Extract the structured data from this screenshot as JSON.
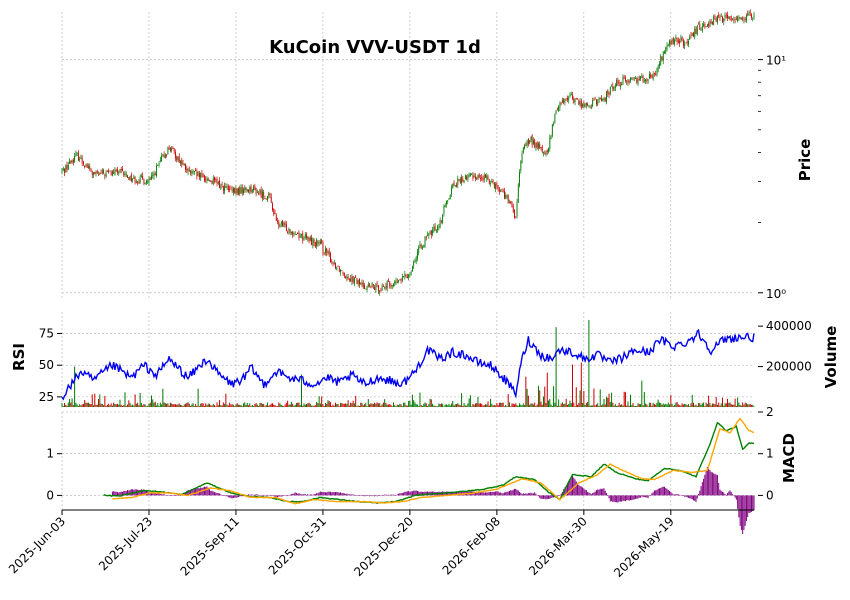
{
  "chart_data": {
    "type": "candlestick",
    "title": "KuCoin VVV-USDT 1d",
    "x_tick_labels": [
      "2025-Jun-03",
      "2025-Jul-23",
      "2025-Sep-11",
      "2025-Oct-31",
      "2025-Dec-20",
      "2026-Feb-08",
      "2026-Mar-30",
      "2026-May-19"
    ],
    "colors": {
      "up": "#007a00",
      "down": "#cc0000",
      "rsi": "#0000ee",
      "macd": "#008000",
      "signal": "#ffa500",
      "hist": "#800080",
      "grid": "#b0b0b0"
    },
    "grid": true,
    "panels": {
      "price": {
        "ylabel": "Price",
        "scale": "log",
        "ylim": [
          0.95,
          16
        ],
        "tick_labels": [
          {
            "value": 1,
            "label": "10⁰"
          },
          {
            "value": 10,
            "label": "10¹"
          }
        ],
        "anchors": [
          [
            0,
            3.3
          ],
          [
            12,
            3.9
          ],
          [
            25,
            3.2
          ],
          [
            45,
            3.3
          ],
          [
            55,
            3.1
          ],
          [
            70,
            3.0
          ],
          [
            85,
            4.2
          ],
          [
            100,
            3.3
          ],
          [
            120,
            3.0
          ],
          [
            135,
            2.7
          ],
          [
            150,
            2.8
          ],
          [
            165,
            2.55
          ],
          [
            170,
            2.0
          ],
          [
            190,
            1.75
          ],
          [
            205,
            1.6
          ],
          [
            215,
            1.35
          ],
          [
            225,
            1.2
          ],
          [
            238,
            1.08
          ],
          [
            250,
            1.05
          ],
          [
            265,
            1.1
          ],
          [
            275,
            1.2
          ],
          [
            285,
            1.6
          ],
          [
            300,
            2.0
          ],
          [
            310,
            2.9
          ],
          [
            325,
            3.2
          ],
          [
            340,
            3.05
          ],
          [
            352,
            2.6
          ],
          [
            360,
            2.1
          ],
          [
            366,
            4.3
          ],
          [
            372,
            4.5
          ],
          [
            385,
            3.9
          ],
          [
            393,
            6.3
          ],
          [
            402,
            7.0
          ],
          [
            415,
            6.3
          ],
          [
            430,
            6.8
          ],
          [
            440,
            8.0
          ],
          [
            450,
            8.2
          ],
          [
            462,
            8.4
          ],
          [
            470,
            8.5
          ],
          [
            480,
            11.5
          ],
          [
            488,
            12.2
          ],
          [
            496,
            11.6
          ],
          [
            505,
            13.8
          ],
          [
            520,
            15.0
          ],
          [
            540,
            15.2
          ]
        ]
      },
      "rsi": {
        "ylabel": "RSI",
        "tick_labels": [
          25,
          50,
          75
        ],
        "anchors": [
          [
            0,
            25
          ],
          [
            15,
            45
          ],
          [
            25,
            38
          ],
          [
            40,
            50
          ],
          [
            55,
            40
          ],
          [
            65,
            50
          ],
          [
            75,
            42
          ],
          [
            85,
            55
          ],
          [
            90,
            50
          ],
          [
            100,
            40
          ],
          [
            115,
            55
          ],
          [
            125,
            42
          ],
          [
            135,
            35
          ],
          [
            145,
            40
          ],
          [
            150,
            48
          ],
          [
            160,
            35
          ],
          [
            170,
            45
          ],
          [
            180,
            40
          ],
          [
            190,
            38
          ],
          [
            200,
            35
          ],
          [
            210,
            40
          ],
          [
            220,
            36
          ],
          [
            230,
            42
          ],
          [
            240,
            35
          ],
          [
            250,
            40
          ],
          [
            260,
            38
          ],
          [
            270,
            35
          ],
          [
            280,
            45
          ],
          [
            290,
            62
          ],
          [
            300,
            55
          ],
          [
            310,
            60
          ],
          [
            320,
            58
          ],
          [
            330,
            52
          ],
          [
            340,
            50
          ],
          [
            350,
            40
          ],
          [
            360,
            28
          ],
          [
            365,
            55
          ],
          [
            370,
            70
          ],
          [
            380,
            58
          ],
          [
            388,
            55
          ],
          [
            395,
            62
          ],
          [
            405,
            60
          ],
          [
            415,
            55
          ],
          [
            425,
            58
          ],
          [
            435,
            52
          ],
          [
            445,
            56
          ],
          [
            455,
            62
          ],
          [
            465,
            60
          ],
          [
            475,
            70
          ],
          [
            485,
            65
          ],
          [
            495,
            68
          ],
          [
            505,
            75
          ],
          [
            515,
            62
          ],
          [
            525,
            70
          ],
          [
            535,
            72
          ],
          [
            540,
            72
          ]
        ]
      },
      "volume": {
        "ylabel": "Volume",
        "tick_labels": [
          200000,
          400000
        ],
        "ylim": [
          0,
          470000
        ]
      },
      "macd": {
        "ylabel": "MACD",
        "tick_labels": [
          0,
          1,
          2
        ],
        "ylim": [
          -0.35,
          2.0
        ],
        "macd_anchors": [
          [
            35,
            0.0
          ],
          [
            45,
            -0.02
          ],
          [
            65,
            0.12
          ],
          [
            80,
            0.08
          ],
          [
            95,
            0.02
          ],
          [
            115,
            0.3
          ],
          [
            135,
            0.05
          ],
          [
            150,
            -0.03
          ],
          [
            165,
            -0.05
          ],
          [
            180,
            -0.15
          ],
          [
            190,
            -0.15
          ],
          [
            205,
            -0.05
          ],
          [
            220,
            -0.1
          ],
          [
            235,
            -0.15
          ],
          [
            250,
            -0.18
          ],
          [
            265,
            -0.15
          ],
          [
            280,
            0.0
          ],
          [
            300,
            0.05
          ],
          [
            320,
            0.1
          ],
          [
            335,
            0.15
          ],
          [
            350,
            0.25
          ],
          [
            360,
            0.45
          ],
          [
            375,
            0.38
          ],
          [
            385,
            0.1
          ],
          [
            395,
            -0.1
          ],
          [
            405,
            0.5
          ],
          [
            420,
            0.45
          ],
          [
            430,
            0.75
          ],
          [
            440,
            0.55
          ],
          [
            455,
            0.4
          ],
          [
            465,
            0.35
          ],
          [
            478,
            0.65
          ],
          [
            490,
            0.6
          ],
          [
            503,
            0.45
          ],
          [
            515,
            1.3
          ],
          [
            520,
            1.75
          ],
          [
            527,
            1.55
          ],
          [
            535,
            1.65
          ],
          [
            540,
            1.1
          ],
          [
            545,
            1.25
          ]
        ],
        "signal_anchors": [
          [
            40,
            -0.08
          ],
          [
            55,
            -0.05
          ],
          [
            70,
            0.06
          ],
          [
            85,
            0.06
          ],
          [
            100,
            0.0
          ],
          [
            118,
            0.18
          ],
          [
            135,
            0.1
          ],
          [
            150,
            -0.05
          ],
          [
            170,
            -0.05
          ],
          [
            185,
            -0.2
          ],
          [
            200,
            -0.1
          ],
          [
            220,
            -0.15
          ],
          [
            240,
            -0.15
          ],
          [
            255,
            -0.18
          ],
          [
            270,
            -0.15
          ],
          [
            285,
            -0.05
          ],
          [
            305,
            0.0
          ],
          [
            325,
            0.05
          ],
          [
            345,
            0.15
          ],
          [
            365,
            0.4
          ],
          [
            380,
            0.3
          ],
          [
            395,
            -0.1
          ],
          [
            410,
            0.3
          ],
          [
            425,
            0.5
          ],
          [
            435,
            0.75
          ],
          [
            445,
            0.6
          ],
          [
            460,
            0.4
          ],
          [
            470,
            0.38
          ],
          [
            485,
            0.6
          ],
          [
            500,
            0.55
          ],
          [
            512,
            0.6
          ],
          [
            522,
            1.6
          ],
          [
            530,
            1.5
          ],
          [
            538,
            1.85
          ],
          [
            545,
            1.55
          ],
          [
            550,
            1.5
          ]
        ]
      }
    }
  }
}
